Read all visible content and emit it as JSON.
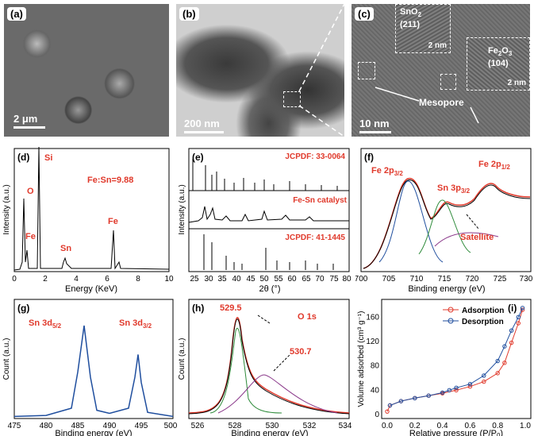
{
  "panel_a": {
    "label": "(a)",
    "scale": "2 μm"
  },
  "panel_b": {
    "label": "(b)",
    "scale": "200 nm"
  },
  "panel_c": {
    "label": "(c)",
    "scale": "10 nm",
    "inset1_phase": "SnO",
    "inset1_sub": "2",
    "inset1_plane": "(211)",
    "inset1_scale": "2 nm",
    "inset2_phase": "Fe",
    "inset2_sub": "2",
    "inset2_o": "O",
    "inset2_osub": "3",
    "inset2_plane": "(104)",
    "inset2_scale": "2 nm",
    "mesopore": "Mesopore"
  },
  "panel_d": {
    "label": "(d)",
    "ratio": "Fe:Sn=9.88",
    "peaks": [
      "O",
      "Fe",
      "Si",
      "Sn",
      "Fe"
    ],
    "xlabel": "Energy (KeV)",
    "ylabel": "Intensity (a.u.)",
    "xticks": [
      "0",
      "2",
      "4",
      "6",
      "8",
      "10"
    ]
  },
  "panel_e": {
    "label": "(e)",
    "ref1": "JCPDF: 33-0064",
    "catalyst": "Fe-Sn catalyst",
    "ref2": "JCPDF: 41-1445",
    "xlabel": "2θ (°)",
    "ylabel": "Intensity (a.u.)",
    "xticks": [
      "25",
      "30",
      "35",
      "40",
      "45",
      "50",
      "55",
      "60",
      "65",
      "70",
      "75",
      "80"
    ]
  },
  "panel_f": {
    "label": "(f)",
    "peak1": "Fe 2p",
    "peak1_sub": "3/2",
    "peak2": "Sn 3p",
    "peak2_sub": "3/2",
    "peak3": "Fe 2p",
    "peak3_sub": "1/2",
    "satellite": "Satellite",
    "xlabel": "Binding energy (eV)",
    "xticks": [
      "700",
      "705",
      "710",
      "715",
      "720",
      "725",
      "730"
    ]
  },
  "panel_g": {
    "label": "(g)",
    "peak1": "Sn 3d",
    "peak1_sub": "5/2",
    "peak2": "Sn 3d",
    "peak2_sub": "3/2",
    "xlabel": "Binding energy (eV)",
    "ylabel": "Count (a.u.)",
    "xticks": [
      "475",
      "480",
      "485",
      "490",
      "495",
      "500"
    ]
  },
  "panel_h": {
    "label": "(h)",
    "title": "O 1s",
    "p1": "529.5",
    "p2": "530.7",
    "xlabel": "Binding energy (eV)",
    "ylabel": "Count (a.u.)",
    "xticks": [
      "526",
      "528",
      "530",
      "532",
      "534"
    ]
  },
  "panel_i": {
    "label": "(i)",
    "legend_ads": "Adsorption",
    "legend_des": "Desorption",
    "xlabel": "Relative pressure (P/P",
    "xlabel_sub": "0",
    "xlabel_end": ")",
    "ylabel": "Volume adsorbed (cm³ g⁻¹)",
    "xticks": [
      "0.0",
      "0.2",
      "0.4",
      "0.6",
      "0.8",
      "1.0"
    ],
    "yticks": [
      "0",
      "40",
      "80",
      "120",
      "160"
    ]
  },
  "colors": {
    "red": "#e0392b",
    "blue": "#1f4e9e",
    "green": "#2e8b3a",
    "purple": "#8b3a8b",
    "black": "#000000"
  },
  "chart_data": [
    {
      "type": "line",
      "panel": "g",
      "xlabel": "Binding energy (eV)",
      "ylabel": "Count (a.u.)",
      "xlim": [
        475,
        500
      ],
      "series": [
        {
          "x": [
            475,
            480,
            484,
            485,
            486,
            487,
            488,
            490,
            493,
            494,
            494.5,
            495,
            496,
            500
          ],
          "values": [
            0.02,
            0.03,
            0.1,
            0.45,
            0.9,
            0.4,
            0.08,
            0.05,
            0.1,
            0.4,
            0.62,
            0.35,
            0.06,
            0.02
          ]
        }
      ]
    },
    {
      "type": "line",
      "panel": "i",
      "xlabel": "Relative pressure (P/P0)",
      "ylabel": "Volume adsorbed (cm3 g-1)",
      "xlim": [
        0,
        1
      ],
      "ylim": [
        0,
        180
      ],
      "series": [
        {
          "name": "Adsorption",
          "x": [
            0,
            0.02,
            0.1,
            0.2,
            0.3,
            0.4,
            0.5,
            0.6,
            0.7,
            0.8,
            0.85,
            0.9,
            0.95,
            0.98
          ],
          "values": [
            5,
            15,
            22,
            27,
            31,
            35,
            40,
            46,
            54,
            68,
            85,
            118,
            150,
            172
          ]
        },
        {
          "name": "Desorption",
          "x": [
            0.98,
            0.95,
            0.9,
            0.85,
            0.8,
            0.7,
            0.6,
            0.5,
            0.45,
            0.4,
            0.3,
            0.2,
            0.1,
            0.02
          ],
          "values": [
            175,
            160,
            138,
            112,
            88,
            64,
            50,
            44,
            40,
            36,
            31,
            27,
            22,
            15
          ]
        }
      ]
    }
  ]
}
